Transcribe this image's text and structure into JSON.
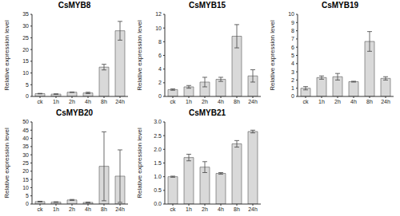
{
  "chart_data": [
    {
      "type": "bar",
      "title": "CsMYB8",
      "ylabel": "Relative expression level",
      "categories": [
        "ck",
        "1h",
        "2h",
        "4h",
        "8h",
        "24h"
      ],
      "values": [
        1.2,
        1.0,
        1.8,
        1.5,
        12.5,
        28
      ],
      "errors": [
        0.1,
        0.1,
        0.1,
        0.3,
        1.2,
        4
      ],
      "color": "#d9d9d9",
      "ylim": [
        0,
        35
      ],
      "yticks": [
        0,
        5,
        10,
        15,
        20,
        25,
        30,
        35
      ]
    },
    {
      "type": "bar",
      "title": "CsMYB15",
      "ylabel": "Relative expression level",
      "categories": [
        "ck",
        "1h",
        "2h",
        "4h",
        "8h",
        "24h"
      ],
      "values": [
        1.0,
        1.4,
        2.1,
        2.5,
        8.8,
        3.0
      ],
      "errors": [
        0.1,
        0.2,
        0.7,
        0.3,
        1.7,
        0.9
      ],
      "color": "#d9d9d9",
      "ylim": [
        0,
        12
      ],
      "yticks": [
        0,
        2,
        4,
        6,
        8,
        10,
        12
      ]
    },
    {
      "type": "bar",
      "title": "CsMYB19",
      "ylabel": "Relative expression level",
      "categories": [
        "ck",
        "1h",
        "2h",
        "4h",
        "8h",
        "24h"
      ],
      "values": [
        1.0,
        2.3,
        2.4,
        1.8,
        6.7,
        2.2
      ],
      "errors": [
        0.2,
        0.2,
        0.4,
        0.05,
        1.2,
        0.2
      ],
      "color": "#d9d9d9",
      "ylim": [
        0,
        10
      ],
      "yticks": [
        0,
        1,
        2,
        3,
        4,
        5,
        6,
        7,
        8,
        9,
        10
      ]
    },
    {
      "type": "bar",
      "title": "CsMYB20",
      "ylabel": "Relative expression level",
      "categories": [
        "ck",
        "1h",
        "2h",
        "4h",
        "8h",
        "24h"
      ],
      "values": [
        1.5,
        1.2,
        2.5,
        1.0,
        23,
        17
      ],
      "errors": [
        0.2,
        0.2,
        0.3,
        0.1,
        21,
        16
      ],
      "color": "#d9d9d9",
      "ylim": [
        0,
        50
      ],
      "yticks": [
        0,
        5,
        10,
        15,
        20,
        25,
        30,
        35,
        40,
        45,
        50
      ]
    },
    {
      "type": "bar",
      "title": "CsMYB21",
      "ylabel": "Relative expression level",
      "categories": [
        "ck",
        "1h",
        "2h",
        "4h",
        "8h",
        "24h"
      ],
      "values": [
        1.0,
        1.7,
        1.35,
        1.12,
        2.2,
        2.65
      ],
      "errors": [
        0.02,
        0.12,
        0.2,
        0.03,
        0.12,
        0.05
      ],
      "color": "#d9d9d9",
      "ylim": [
        0,
        3
      ],
      "yticks": [
        {
          "value": 0,
          "label": "0.0"
        },
        0.5,
        {
          "value": 1,
          "label": "1.0"
        },
        1.5,
        {
          "value": 2,
          "label": "2.0"
        },
        2.5,
        {
          "value": 3,
          "label": "3.0"
        }
      ]
    }
  ]
}
